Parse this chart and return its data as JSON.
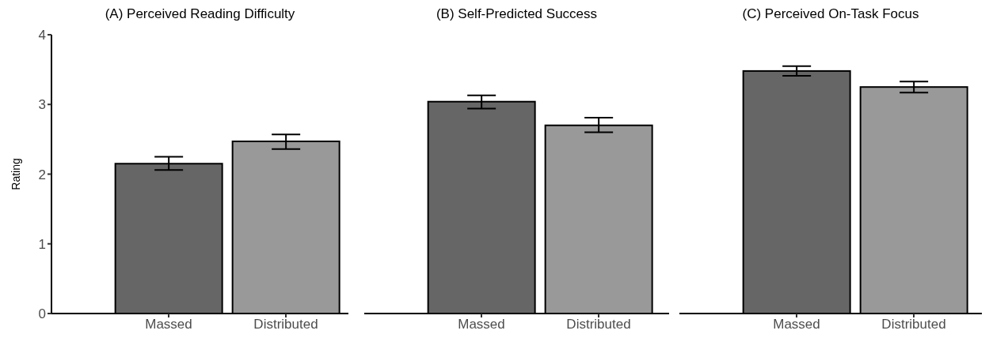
{
  "chart_data": [
    {
      "type": "bar",
      "title": "(A) Perceived Reading Difficulty",
      "ylabel": "Rating",
      "categories": [
        "Massed",
        "Distributed"
      ],
      "values": [
        2.15,
        2.47
      ],
      "colors": [
        "#666666",
        "#999999"
      ],
      "errors": [
        [
          2.06,
          2.25
        ],
        [
          2.36,
          2.57
        ]
      ],
      "ylim": [
        0,
        4
      ],
      "yticks": [
        0,
        1,
        2,
        3,
        4
      ]
    },
    {
      "type": "bar",
      "title": "(B) Self-Predicted Success",
      "categories": [
        "Massed",
        "Distributed"
      ],
      "values": [
        3.04,
        2.7
      ],
      "colors": [
        "#666666",
        "#999999"
      ],
      "errors": [
        [
          2.94,
          3.13
        ],
        [
          2.6,
          2.81
        ]
      ],
      "ylim": [
        0,
        4
      ],
      "yticks": [
        0,
        1,
        2,
        3,
        4
      ],
      "tick_labels": "x"
    },
    {
      "type": "bar",
      "title": "(C) Perceived On-Task Focus",
      "categories": [
        "Massed",
        "Distributed"
      ],
      "values": [
        3.48,
        3.25
      ],
      "colors": [
        "#666666",
        "#999999"
      ],
      "errors": [
        [
          3.41,
          3.55
        ],
        [
          3.17,
          3.33
        ]
      ],
      "ylim": [
        0,
        4
      ],
      "yticks": [
        0,
        1,
        2,
        3,
        4
      ],
      "tick_labels": "x"
    }
  ]
}
